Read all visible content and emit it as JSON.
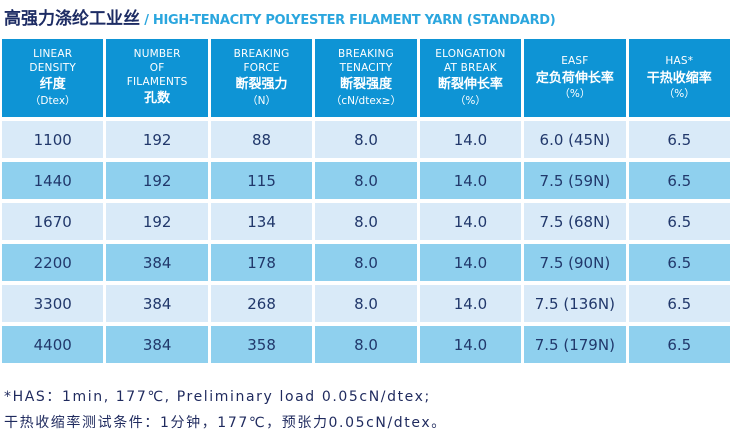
{
  "title": {
    "cn": "高强力涤纶工业丝",
    "sep": " / ",
    "en": "HIGH-TENACITY POLYESTER FILAMENT YARN (STANDARD)"
  },
  "table": {
    "columns": [
      {
        "en": [
          "LINEAR",
          "DENSITY"
        ],
        "cn": "纤度",
        "unit": "（Dtex）"
      },
      {
        "en": [
          "NUMBER",
          "OF",
          "FILAMENTS"
        ],
        "cn": "孔数",
        "unit": ""
      },
      {
        "en": [
          "BREAKING",
          "FORCE"
        ],
        "cn": "断裂强力",
        "unit": "（N）"
      },
      {
        "en": [
          "BREAKING",
          "TENACITY"
        ],
        "cn": "断裂强度",
        "unit": "（cN/dtex≥）"
      },
      {
        "en": [
          "ELONGATION",
          "AT BREAK"
        ],
        "cn": "断裂伸长率",
        "unit": "（%）"
      },
      {
        "en": [
          "EASF"
        ],
        "cn": "定负荷伸长率",
        "unit": "（%）"
      },
      {
        "en": [
          "HAS*"
        ],
        "cn": "干热收缩率",
        "unit": "（%）"
      }
    ],
    "rows": [
      [
        "1100",
        "192",
        "88",
        "8.0",
        "14.0",
        "6.0 (45N)",
        "6.5"
      ],
      [
        "1440",
        "192",
        "115",
        "8.0",
        "14.0",
        "7.5 (59N)",
        "6.5"
      ],
      [
        "1670",
        "192",
        "134",
        "8.0",
        "14.0",
        "7.5 (68N)",
        "6.5"
      ],
      [
        "2200",
        "384",
        "178",
        "8.0",
        "14.0",
        "7.5 (90N)",
        "6.5"
      ],
      [
        "3300",
        "384",
        "268",
        "8.0",
        "14.0",
        "7.5 (136N)",
        "6.5"
      ],
      [
        "4400",
        "384",
        "358",
        "8.0",
        "14.0",
        "7.5 (179N)",
        "6.5"
      ]
    ]
  },
  "notes": [
    "*HAS：1min, 177℃, Preliminary load 0.05cN/dtex;",
    "干热收缩率测试条件：1分钟，177℃，预张力0.05cN/dtex。"
  ],
  "colors": {
    "header_bg": "#0e94d5",
    "row_light": "#d9eaf8",
    "row_medium": "#8fd0ee",
    "cell_text": "#21386b",
    "title_cn": "#1d2c64",
    "title_en": "#2ba6de",
    "notes_text": "#1f2a5e"
  }
}
